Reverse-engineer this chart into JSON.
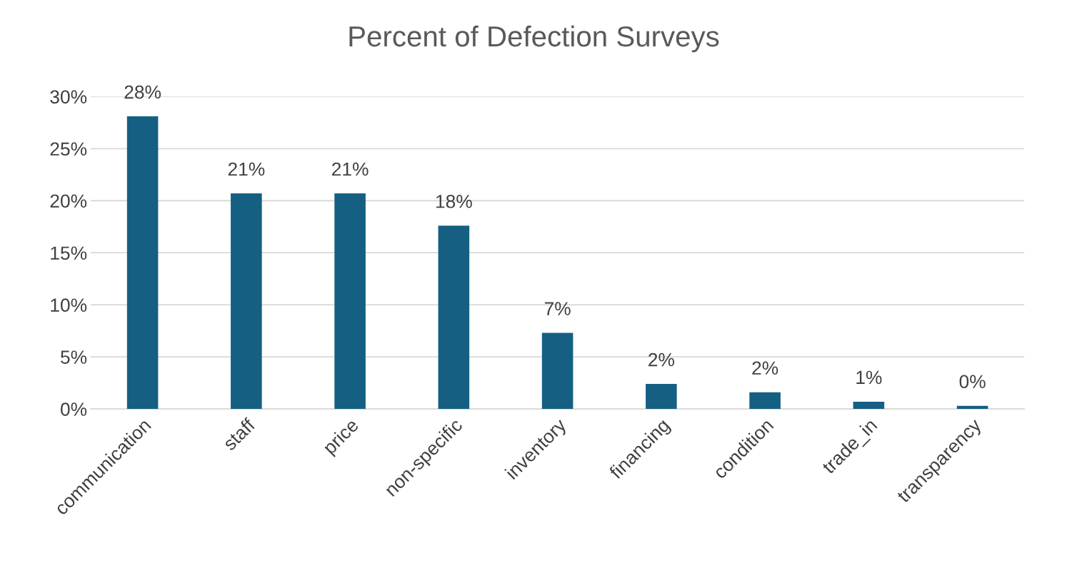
{
  "chart_data": {
    "type": "bar",
    "title": "Percent of Defection Surveys",
    "categories": [
      "communication",
      "staff",
      "price",
      "non-specific",
      "inventory",
      "financing",
      "condition",
      "trade_in",
      "transparency"
    ],
    "values": [
      28.1,
      20.7,
      20.7,
      17.6,
      7.3,
      2.4,
      1.6,
      0.7,
      0.3
    ],
    "value_labels": [
      "28%",
      "21%",
      "21%",
      "18%",
      "7%",
      "2%",
      "2%",
      "1%",
      "0%"
    ],
    "color": "#155f83",
    "ylim": [
      0,
      30
    ],
    "yticks": [
      {
        "value": 0,
        "label": "0%"
      },
      {
        "value": 5,
        "label": "5%"
      },
      {
        "value": 10,
        "label": "10%"
      },
      {
        "value": 15,
        "label": "15%"
      },
      {
        "value": 20,
        "label": "20%"
      },
      {
        "value": 25,
        "label": "25%"
      },
      {
        "value": 30,
        "label": "30%"
      }
    ],
    "grid": "y"
  }
}
